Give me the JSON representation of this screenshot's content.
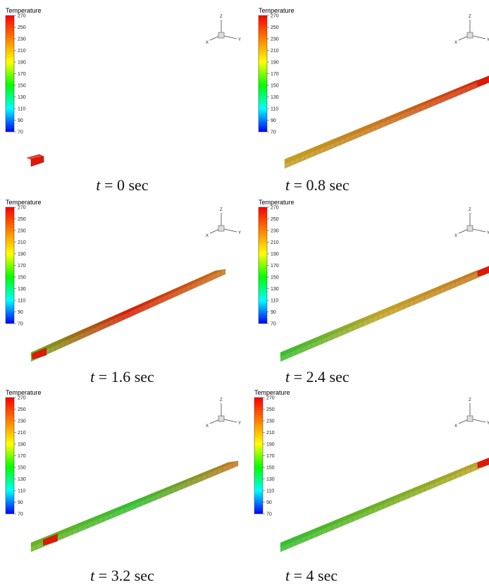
{
  "colorbar": {
    "title": "Temperature",
    "ticks": [
      "270",
      "250",
      "230",
      "210",
      "190",
      "170",
      "150",
      "130",
      "110",
      "90",
      "70"
    ],
    "colors": [
      "#ff0000",
      "#ff8000",
      "#ffff00",
      "#00ff00",
      "#00ffff",
      "#0000ff"
    ]
  },
  "axes_triad": {
    "z": "Z",
    "x": "X",
    "y": "Y"
  },
  "panels": [
    {
      "id": "p1",
      "time_var": "t",
      "eq": " = ",
      "time": "0 sec"
    },
    {
      "id": "p2",
      "time_var": "t",
      "eq": " = ",
      "time": "0.8 sec"
    },
    {
      "id": "p3",
      "time_var": "t",
      "eq": " = ",
      "time": "1.6 sec"
    },
    {
      "id": "p4",
      "time_var": "t",
      "eq": " = ",
      "time": "2.4 sec"
    },
    {
      "id": "p5",
      "time_var": "t",
      "eq": " = ",
      "time": "3.2 sec"
    },
    {
      "id": "p6",
      "time_var": "t",
      "eq": " = ",
      "time": "4 sec"
    }
  ],
  "beam_colors": {
    "hot": "#e01808",
    "warm": "#d0701a",
    "mid": "#c8a020",
    "cool": "#70b020",
    "cold": "#30c030"
  }
}
